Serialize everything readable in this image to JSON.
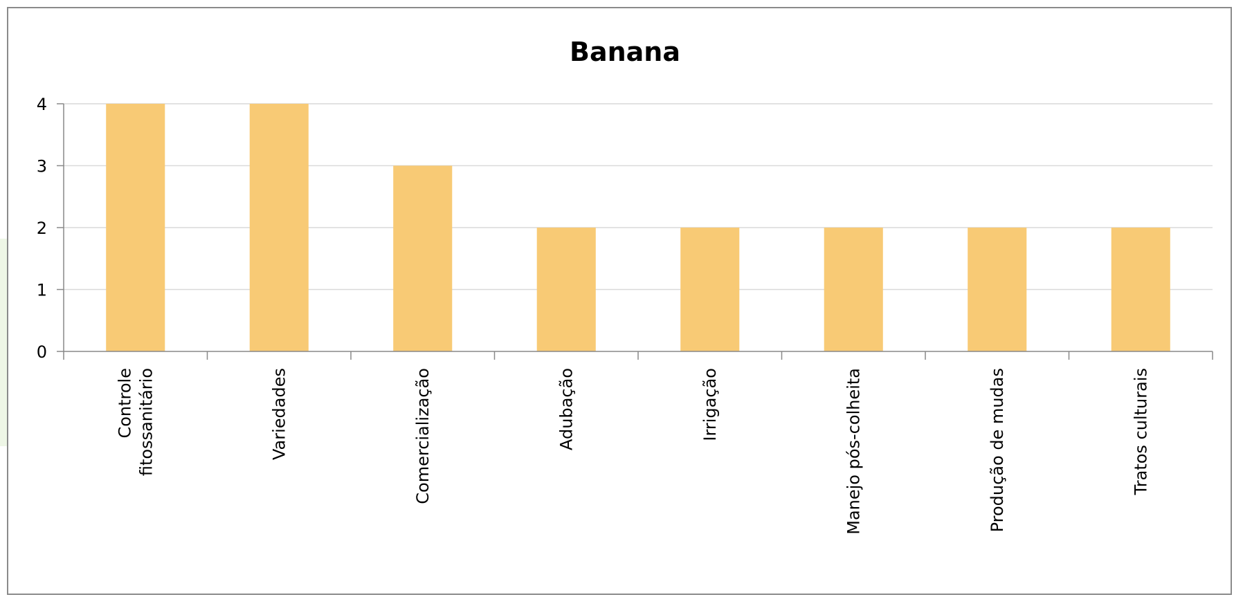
{
  "chart_data": {
    "type": "bar",
    "title": "Banana",
    "xlabel": "",
    "ylabel": "",
    "categories": [
      "Controle fitossanitário",
      "Variedades",
      "Comercialização",
      "Adubação",
      "Irrigação",
      "Manejo pós-colheita",
      "Produção de mudas",
      "Tratos culturais"
    ],
    "category_lines": [
      [
        "Controle",
        "fitossanitário"
      ],
      [
        "Variedades"
      ],
      [
        "Comercialização"
      ],
      [
        "Adubação"
      ],
      [
        "Irrigação"
      ],
      [
        "Manejo pós-colheita"
      ],
      [
        "Produção de mudas"
      ],
      [
        "Tratos culturais"
      ]
    ],
    "values": [
      4,
      4,
      3,
      2,
      2,
      2,
      2,
      2
    ],
    "ylim": [
      0,
      4
    ],
    "yticks": [
      "0",
      "1",
      "2",
      "3",
      "4"
    ],
    "grid": true,
    "legend": "none",
    "colors": {
      "bar": "#f8ca75",
      "grid": "#d9d9d9",
      "axis": "#888888"
    }
  }
}
